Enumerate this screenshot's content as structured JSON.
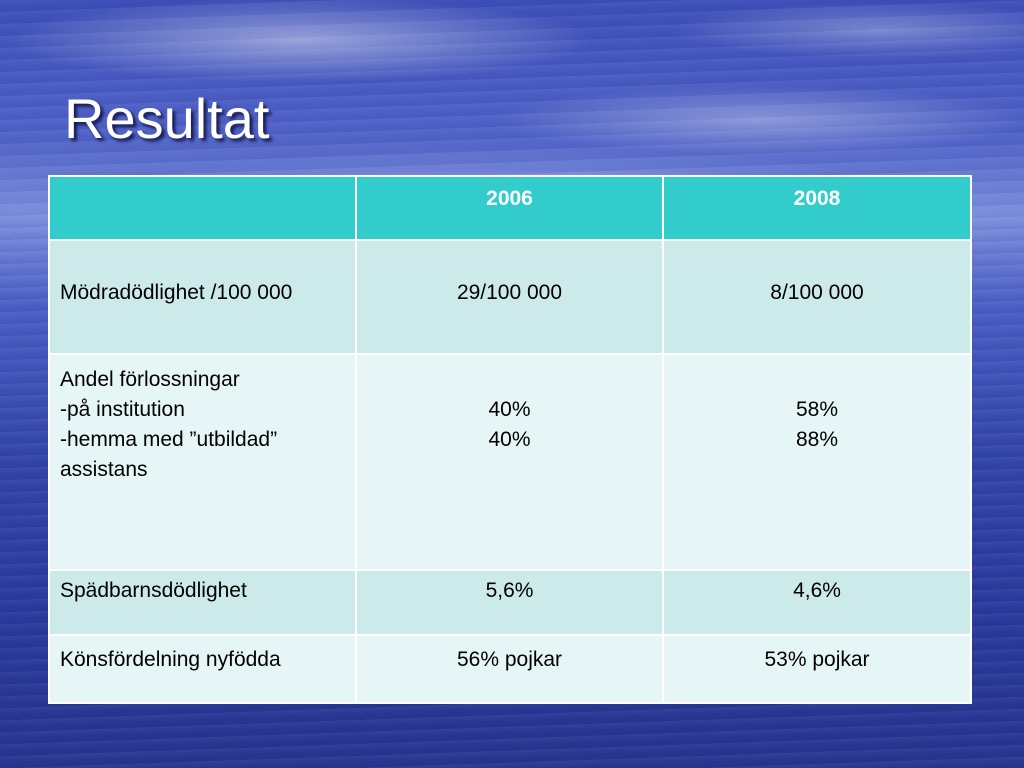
{
  "slide": {
    "title": "Resultat"
  },
  "table": {
    "headers": [
      "",
      "2006",
      "2008"
    ],
    "rows": [
      {
        "label": [
          "Mödradödlighet /100 000"
        ],
        "v2006": [
          "29/100 000"
        ],
        "v2008": [
          "8/100 000"
        ]
      },
      {
        "label": [
          "Andel förlossningar",
          "-på institution",
          "-hemma med ”utbildad”",
          "assistans"
        ],
        "v2006": [
          "40%",
          "40%"
        ],
        "v2008": [
          "58%",
          "88%"
        ]
      },
      {
        "label": [
          "Spädbarnsdödlighet"
        ],
        "v2006": [
          "5,6%"
        ],
        "v2008": [
          "4,6%"
        ]
      },
      {
        "label": [
          "Könsfördelning nyfödda"
        ],
        "v2006": [
          "56% pojkar"
        ],
        "v2008": [
          "53% pojkar"
        ]
      }
    ]
  },
  "colors": {
    "header_bg": "#33cccc",
    "row_dark": "#cdeaea",
    "row_light": "#e6f5f5",
    "background": "#3d4fb8"
  }
}
